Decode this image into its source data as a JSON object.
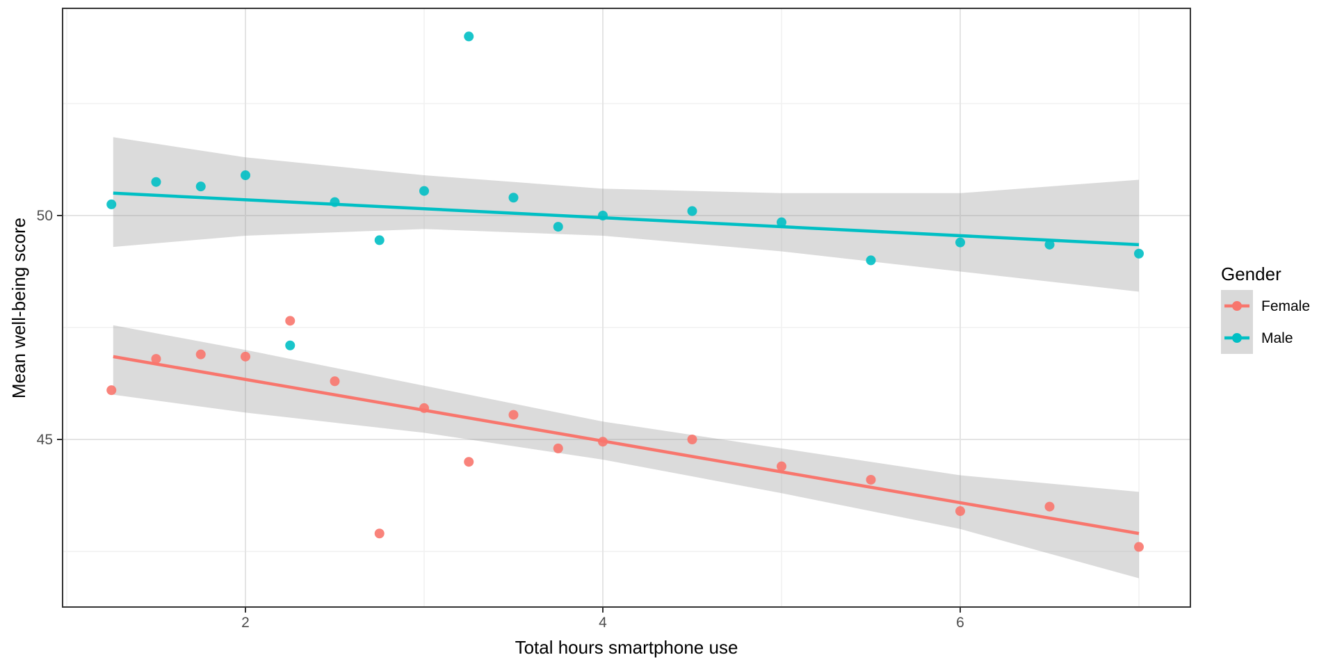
{
  "chart_data": {
    "type": "scatter",
    "title": "",
    "xlabel": "Total hours smartphone use",
    "ylabel": "Mean well-being score",
    "xlim": [
      0.98,
      7.29
    ],
    "ylim": [
      41.3,
      54.6
    ],
    "x_ticks": [
      2,
      4,
      6
    ],
    "y_ticks": [
      45,
      50
    ],
    "x_minor_ticks": [
      1,
      3,
      5,
      7
    ],
    "y_minor_ticks": [
      42.5,
      47.5,
      52.5
    ],
    "grid": "on",
    "panel_border_color": "#333333",
    "major_grid_color": "#e4e4e4",
    "minor_grid_color": "#f1f1f1",
    "ribbon_color": "#999999",
    "ribbon_opacity": 0.35,
    "legend": {
      "title": "Gender",
      "position": "right",
      "key_background": "#d9d9d9",
      "entries": [
        {
          "label": "Female",
          "color": "#F8766D"
        },
        {
          "label": "Male",
          "color": "#00BFC4"
        }
      ]
    },
    "series": [
      {
        "name": "Female",
        "color": "#F8766D",
        "points": [
          [
            1.25,
            46.1
          ],
          [
            1.5,
            46.8
          ],
          [
            1.75,
            46.9
          ],
          [
            2.0,
            46.85
          ],
          [
            2.25,
            47.65
          ],
          [
            2.5,
            46.3
          ],
          [
            2.75,
            42.9
          ],
          [
            3.0,
            45.7
          ],
          [
            3.25,
            44.5
          ],
          [
            3.5,
            45.55
          ],
          [
            3.75,
            44.8
          ],
          [
            4.0,
            44.95
          ],
          [
            4.5,
            45.0
          ],
          [
            5.0,
            44.4
          ],
          [
            5.5,
            44.1
          ],
          [
            6.0,
            43.4
          ],
          [
            6.5,
            43.5
          ],
          [
            7.0,
            42.6
          ]
        ],
        "trend": {
          "x1": 1.26,
          "y1": 46.85,
          "x2": 7.0,
          "y2": 42.9
        },
        "ribbon": {
          "x": [
            1.26,
            2.0,
            3.0,
            4.0,
            5.0,
            6.0,
            7.0
          ],
          "top": [
            47.55,
            47.0,
            46.2,
            45.4,
            44.8,
            44.2,
            43.83
          ],
          "bottom": [
            46.0,
            45.6,
            45.15,
            44.55,
            43.8,
            43.0,
            41.9
          ]
        }
      },
      {
        "name": "Male",
        "color": "#00BFC4",
        "points": [
          [
            1.25,
            50.25
          ],
          [
            1.5,
            50.75
          ],
          [
            1.75,
            50.65
          ],
          [
            2.0,
            50.9
          ],
          [
            2.25,
            47.1
          ],
          [
            2.5,
            50.3
          ],
          [
            2.75,
            49.45
          ],
          [
            3.0,
            50.55
          ],
          [
            3.25,
            54.0
          ],
          [
            3.5,
            50.4
          ],
          [
            3.75,
            49.75
          ],
          [
            4.0,
            50.0
          ],
          [
            4.5,
            50.1
          ],
          [
            5.0,
            49.85
          ],
          [
            5.5,
            49.0
          ],
          [
            6.0,
            49.4
          ],
          [
            6.5,
            49.35
          ],
          [
            7.0,
            49.15
          ]
        ],
        "trend": {
          "x1": 1.26,
          "y1": 50.5,
          "x2": 7.0,
          "y2": 49.35
        },
        "ribbon": {
          "x": [
            1.26,
            2.0,
            3.0,
            4.0,
            5.0,
            6.0,
            7.0
          ],
          "top": [
            51.75,
            51.3,
            50.9,
            50.6,
            50.5,
            50.5,
            50.8
          ],
          "bottom": [
            49.3,
            49.55,
            49.7,
            49.55,
            49.2,
            48.75,
            48.3
          ]
        }
      }
    ]
  }
}
